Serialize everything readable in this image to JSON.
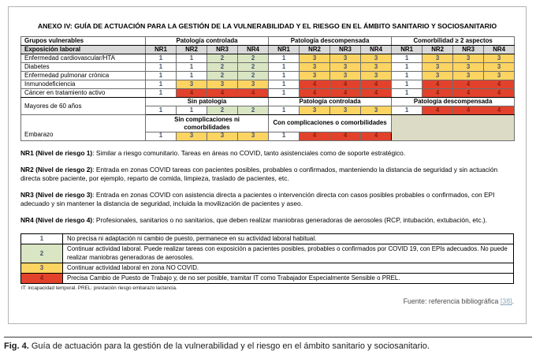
{
  "title": "ANEXO IV: GUÍA DE ACTUACIÓN PARA LA GESTIÓN DE LA VULNERABILIDAD Y EL RIESGO EN EL ÁMBITO SANITARIO Y SOCIOSANITARIO",
  "matrix": {
    "groups_label": "Grupos vulnerables",
    "exposure_label": "Exposición laboral",
    "sections": [
      "Patología controlada",
      "Patología descompensada",
      "Comorbilidad ≥ 2 aspectos"
    ],
    "col_headers": [
      "NR1",
      "NR2",
      "NR3",
      "NR4"
    ],
    "rows": [
      {
        "label": "Enfermedad cardiovascular/HTA",
        "values": [
          1,
          1,
          2,
          2,
          1,
          3,
          3,
          3,
          1,
          3,
          3,
          3
        ]
      },
      {
        "label": "Diabetes",
        "values": [
          1,
          1,
          2,
          2,
          1,
          3,
          3,
          3,
          1,
          3,
          3,
          3
        ]
      },
      {
        "label": "Enfermedad pulmonar crónica",
        "values": [
          1,
          1,
          2,
          2,
          1,
          3,
          3,
          3,
          1,
          3,
          3,
          3
        ]
      },
      {
        "label": "Inmunodeficiencia",
        "values": [
          1,
          3,
          3,
          3,
          1,
          4,
          4,
          4,
          1,
          4,
          4,
          4
        ]
      },
      {
        "label": "Cáncer en tratamiento activo",
        "values": [
          1,
          4,
          4,
          4,
          1,
          4,
          4,
          4,
          1,
          4,
          4,
          4
        ]
      }
    ],
    "mayores": {
      "label": "Mayores de 60 años",
      "sub_headers": [
        "Sin patología",
        "Patología controlada",
        "Patología descompensada"
      ],
      "values": [
        1,
        1,
        2,
        2,
        1,
        3,
        3,
        3,
        1,
        4,
        4,
        4
      ]
    },
    "embarazo": {
      "label": "Embarazo",
      "sub_headers": [
        "Sin complicaciones ni comorbilidades",
        "Con complicaciones o comorbilidades"
      ],
      "values": [
        1,
        3,
        3,
        3,
        1,
        4,
        4,
        4
      ]
    }
  },
  "risk_notes": [
    {
      "lead": "NR1 (Nivel de riesgo 1)",
      "text": ": Similar a riesgo comunitario. Tareas en áreas no COVID, tanto asistenciales como de soporte estratégico."
    },
    {
      "lead": "NR2 (Nivel de riesgo 2)",
      "text": ": Entrada en zonas COVID tareas con pacientes posibles, probables o confirmados, manteniendo la distancia de seguridad y sin actuación directa sobre paciente, por ejemplo, reparto de comida, limpieza, traslado de pacientes, etc."
    },
    {
      "lead": "NR3 (Nivel de riesgo 3)",
      "text": ": Entrada en zonas COVID con asistencia directa a pacientes o intervención directa con casos posibles probables o confirmados, con EPI adecuado y sin mantener la distancia de seguridad, incluida la movilización de pacientes y aseo."
    },
    {
      "lead": "NR4 (Nivel de riesgo 4)",
      "text": ": Profesionales, sanitarios o no sanitarios, que deben realizar maniobras generadoras de aerosoles (RCP, intubación, extubación, etc.)."
    }
  ],
  "legend": {
    "items": [
      {
        "value": "1",
        "text": "No precisa ni adaptación ni cambio de puesto, permanece en su actividad laboral habitual."
      },
      {
        "value": "2",
        "text": "Continuar actividad laboral. Puede realizar tareas con exposición a pacientes posibles, probables o confirmados por COVID 19, con EPIs adecuados. No puede realizar maniobras generadoras de aerosoles."
      },
      {
        "value": "3",
        "text": "Continuar actividad laboral en zona NO COVID."
      },
      {
        "value": "4",
        "text": "Precisa Cambio de Puesto de Trabajo y, de no ser posible, tramitar IT como Trabajador Especialmente Sensible o PREL."
      }
    ],
    "footnote": "IT: incapacidad temporal. PREL: prestación riesgo embarazo lactancia."
  },
  "source": {
    "prefix": "Fuente: referencia bibliográfica ",
    "link": "[38]",
    "suffix": "."
  },
  "caption": {
    "bold": "Fig. 4.",
    "text": " Guía de actuación para la gestión de la vulnerabilidad y el riesgo en el ámbito sanitario y sociosanitario."
  },
  "colors": {
    "risk_1_bg": "#ffffff",
    "risk_2_bg": "#d9e5c3",
    "risk_3_bg": "#fcd462",
    "risk_4_bg": "#e2422c",
    "header_gray": "#d9d9d9",
    "empty_beige": "#dcdcc6",
    "value_text": "#44546a",
    "link": "#8aa9bd"
  }
}
